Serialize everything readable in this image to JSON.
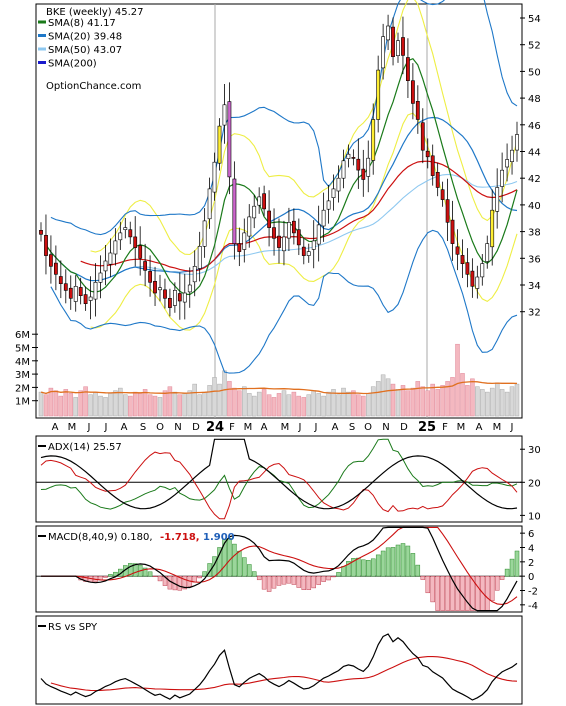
{
  "header": {
    "title": "BKE (weekly) 45.27",
    "legend": [
      {
        "label": "SMA(8) 41.17",
        "color": "#1a7a1a"
      },
      {
        "label": "SMA(20) 39.48",
        "color": "#1f78c8"
      },
      {
        "label": "SMA(50) 43.07",
        "color": "#8ec8f0"
      },
      {
        "label": "SMA(200)",
        "color": "#1a1acc"
      }
    ],
    "watermark": "OptionChance.com"
  },
  "colors": {
    "up": "#ffffff",
    "down": "#cc1010",
    "doji_up": "#ffee33",
    "doji_down": "#cc66cc",
    "sma8": "#1a7a1a",
    "sma20": "#1f78c8",
    "sma50": "#8ec8f0",
    "boll": "#1f78c8",
    "envelope": "#eeee44",
    "ema200": "#cc1010",
    "vol_up": "#d8d8d8",
    "vol_down": "#f4b8c0",
    "vol_ma": "#e07020"
  },
  "price_axis": {
    "ticks": [
      "54",
      "52",
      "50",
      "48",
      "46",
      "44",
      "42",
      "40",
      "38",
      "36",
      "34",
      "32"
    ]
  },
  "volume_axis": {
    "ticks": [
      "6M",
      "5M",
      "4M",
      "3M",
      "2M",
      "1M"
    ]
  },
  "x_axis": {
    "labels": [
      "A",
      "M",
      "J",
      "J",
      "A",
      "S",
      "O",
      "N",
      "D",
      "24",
      "F",
      "M",
      "A",
      "M",
      "J",
      "J",
      "A",
      "S",
      "O",
      "N",
      "D",
      "25",
      "F",
      "M",
      "A",
      "M",
      "J"
    ],
    "bold_labels": [
      "24",
      "25"
    ]
  },
  "adx": {
    "title": "ADX(14) 25.57",
    "ticks": [
      "30",
      "20",
      "10"
    ]
  },
  "macd": {
    "title": "MACD(8,40,9) 0.180,",
    "val2": "-1.718,",
    "val3": "1.900",
    "ticks": [
      "6",
      "4",
      "2",
      "0",
      "-2",
      "-4"
    ]
  },
  "rs": {
    "title": "RS vs SPY"
  },
  "chart_data": [
    {
      "type": "candlestick",
      "title": "BKE (weekly) 45.27",
      "ylim": [
        31,
        55
      ],
      "x_start": "2023-04",
      "x_end": "2025-06",
      "series": [
        {
          "name": "SMA(8)",
          "last": 41.17
        },
        {
          "name": "SMA(20)",
          "last": 39.48
        },
        {
          "name": "SMA(50)",
          "last": 43.07
        },
        {
          "name": "SMA(200)"
        }
      ],
      "close_path": [
        37.8,
        36.2,
        35.4,
        34.8,
        34.1,
        33.6,
        33.0,
        33.9,
        33.2,
        32.6,
        33.1,
        34.2,
        34.9,
        35.8,
        36.4,
        37.3,
        37.9,
        38.3,
        37.6,
        36.8,
        36.0,
        35.1,
        34.2,
        33.4,
        33.8,
        33.0,
        32.3,
        33.6,
        32.8,
        33.4,
        34.0,
        35.4,
        36.9,
        38.8,
        41.2,
        43.2,
        45.9,
        47.5,
        42.1,
        37.1,
        36.5,
        37.9,
        39.1,
        39.9,
        40.6,
        39.7,
        38.3,
        37.5,
        36.8,
        37.6,
        38.7,
        37.9,
        37.0,
        36.2,
        36.5,
        37.3,
        38.5,
        39.6,
        40.3,
        41.2,
        42.0,
        43.3,
        43.8,
        43.5,
        42.6,
        41.9,
        43.5,
        46.4,
        50.1,
        52.6,
        53.4,
        51.1,
        52.3,
        51.2,
        49.3,
        47.6,
        46.4,
        44.1,
        43.6,
        42.2,
        41.3,
        40.4,
        38.7,
        37.1,
        36.3,
        35.6,
        34.8,
        33.9,
        34.6,
        35.6,
        37.1,
        39.6,
        41.3,
        42.6,
        43.4,
        44.1,
        45.27
      ]
    },
    {
      "type": "bar",
      "title": "Volume",
      "ylim": [
        0,
        7
      ],
      "unit": "M"
    },
    {
      "type": "line",
      "title": "ADX(14) 25.57",
      "ylim": [
        8,
        34
      ],
      "series": [
        {
          "name": "ADX(14)",
          "last": 25.57
        }
      ]
    },
    {
      "type": "line",
      "title": "MACD(8,40,9)",
      "ylim": [
        -5,
        7
      ],
      "values": [
        0.18,
        -1.718,
        1.9
      ]
    },
    {
      "type": "line",
      "title": "RS vs SPY"
    }
  ]
}
